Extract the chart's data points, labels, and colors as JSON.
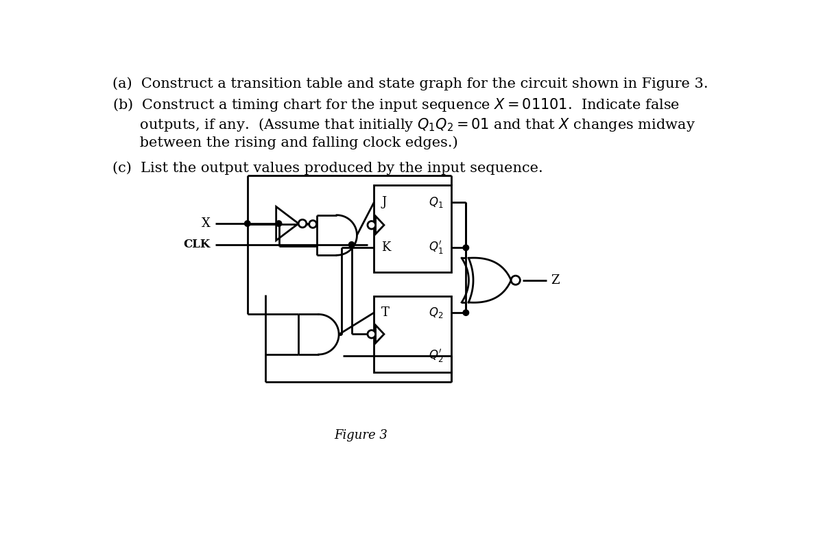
{
  "text_a": "(a)  Construct a transition table and state graph for the circuit shown in Figure 3.",
  "text_b_line1": "(b)  Construct a timing chart for the input sequence $X = 01101$.  Indicate false",
  "text_b_line2": "      outputs, if any.  (Assume that initially $Q_1Q_2 = 01$ and that $X$ changes midway",
  "text_b_line3": "      between the rising and falling clock edges.)",
  "text_c": "(c)  List the output values produced by the input sequence.",
  "figure_caption": "Figure 3",
  "bg_color": "#ffffff",
  "line_color": "#000000",
  "text_color": "#000000",
  "font_size_text": 15.0,
  "font_size_caption": 13
}
